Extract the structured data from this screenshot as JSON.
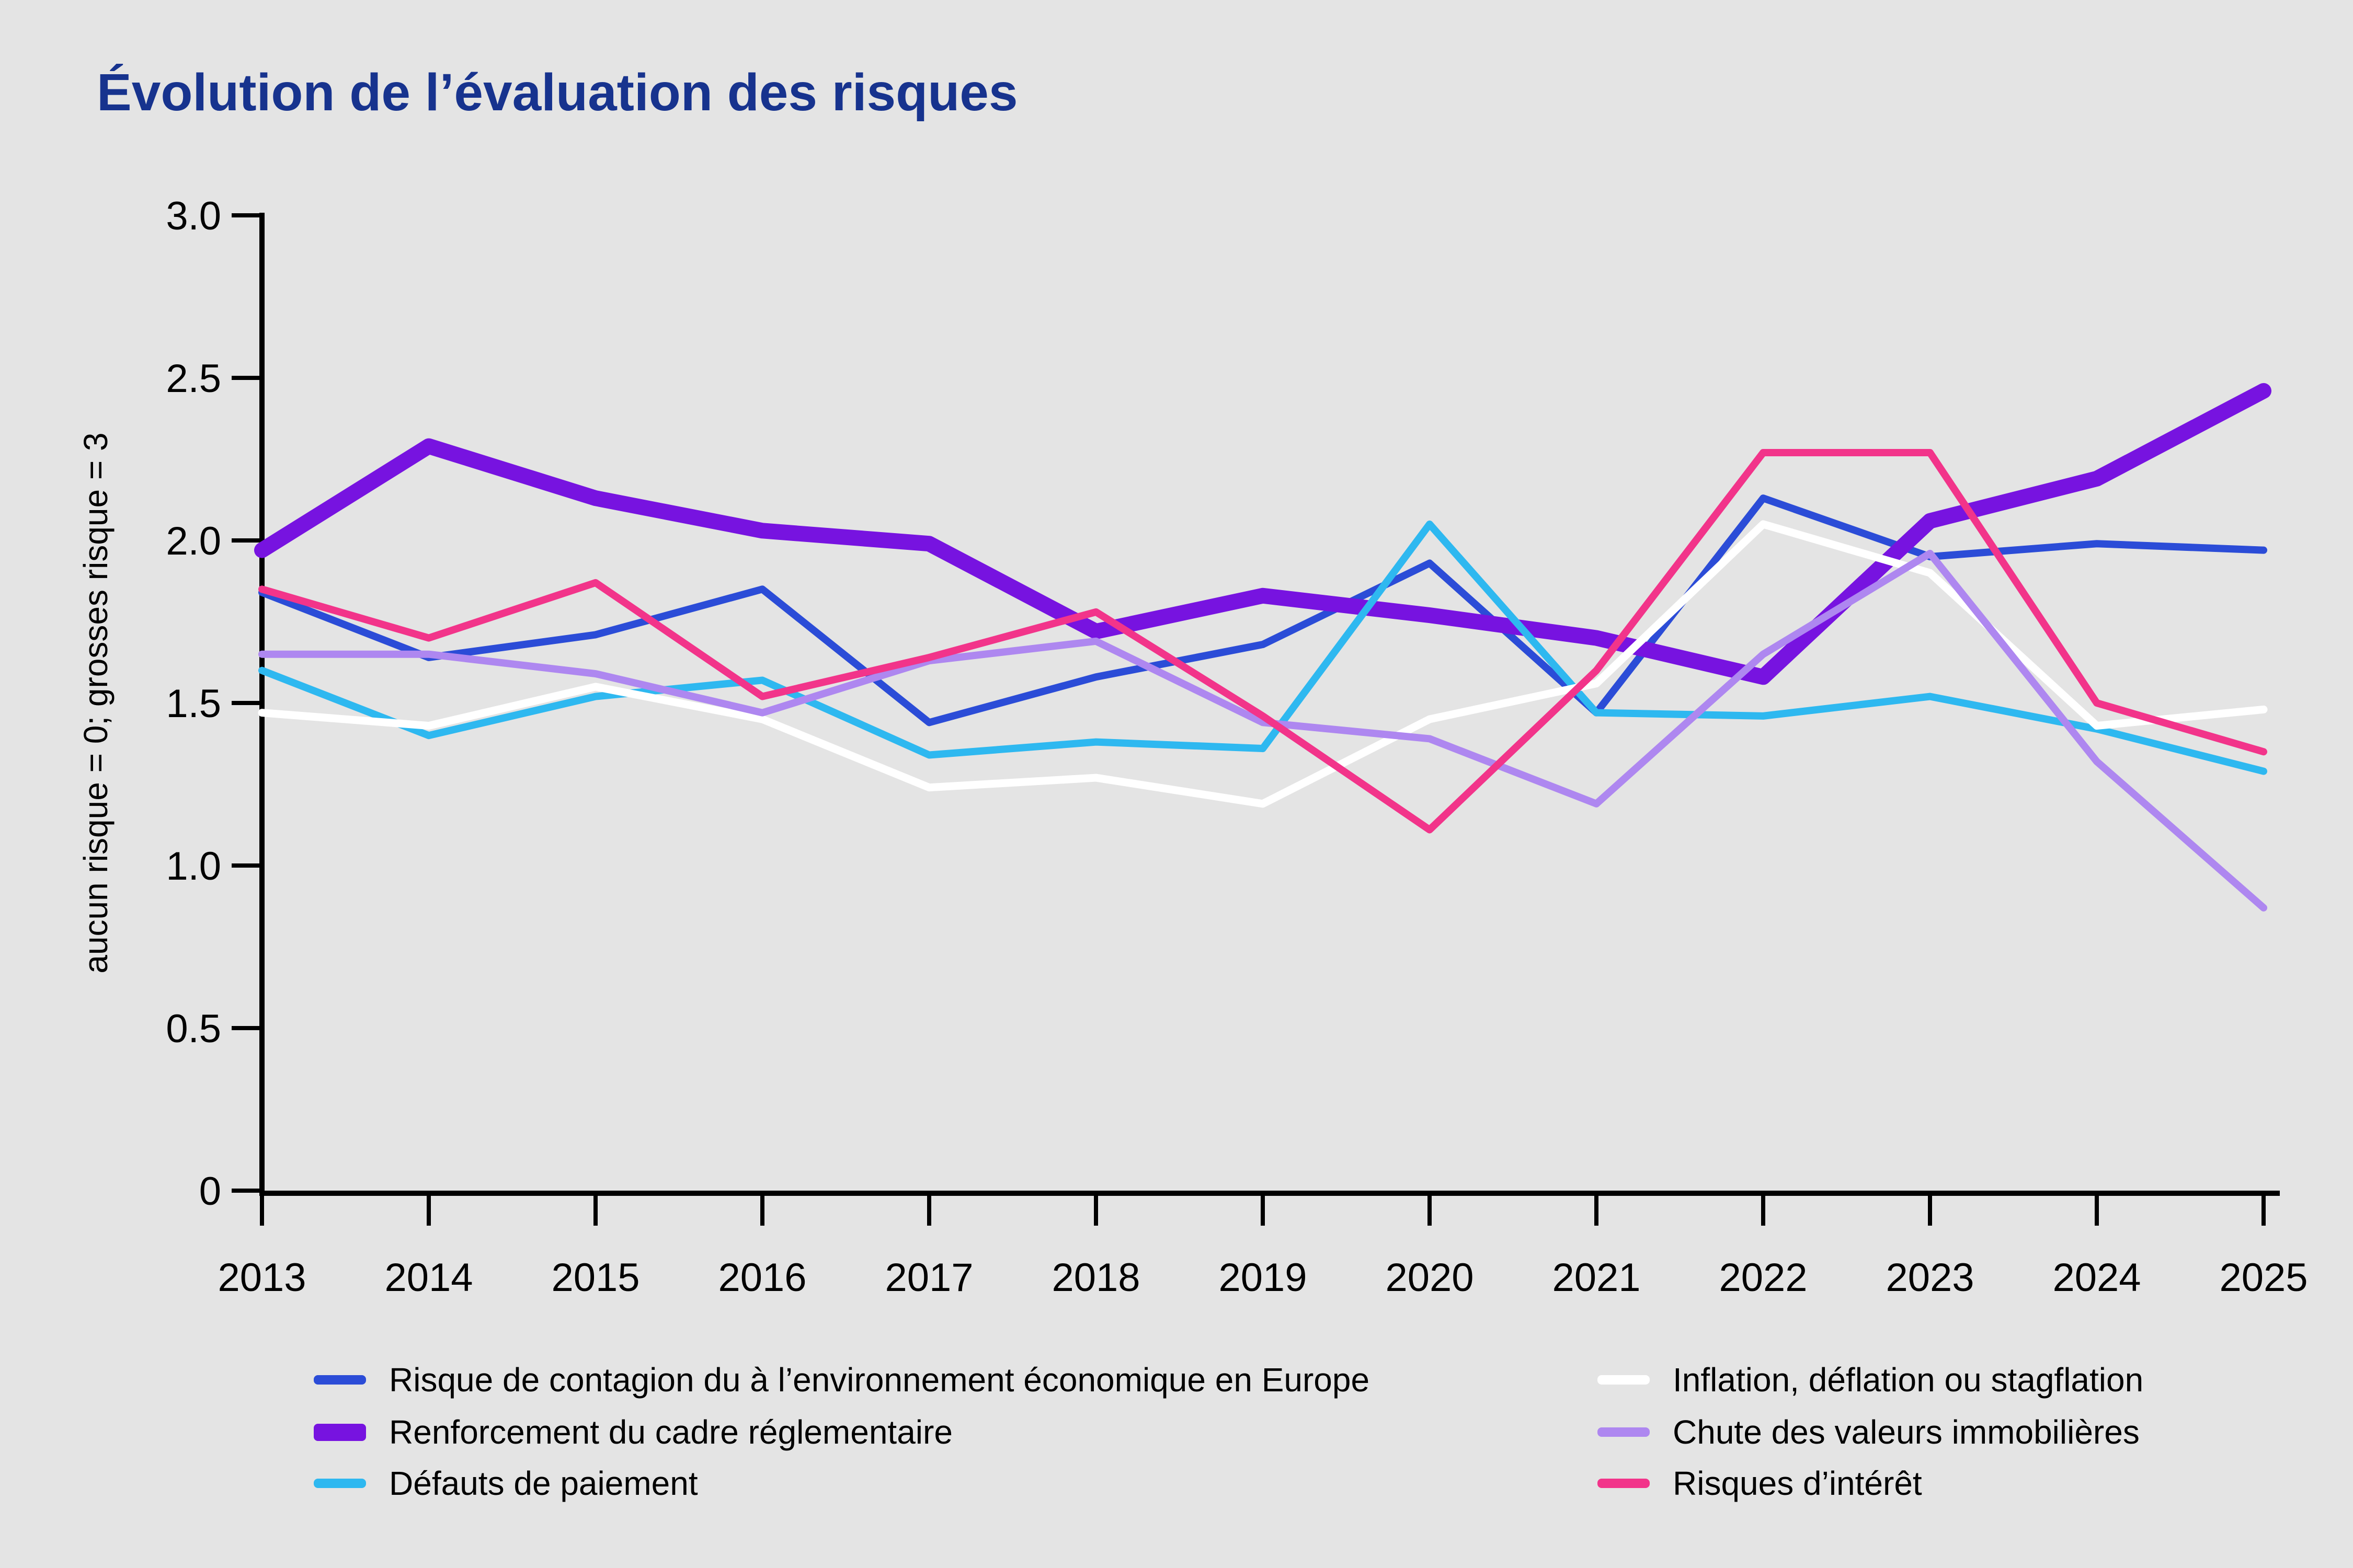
{
  "title": "Évolution de l’évaluation des risques",
  "colors": {
    "background": "#e4e4e4",
    "title": "#17338e",
    "axis": "#000000",
    "tick_text": "#000000",
    "legend_text": "#000000"
  },
  "chart_data": {
    "type": "line",
    "title": "Évolution de l’évaluation des risques",
    "xlabel": "",
    "ylabel": "aucun risque = 0; grosses risque = 3",
    "ylim": [
      0,
      3
    ],
    "grid": false,
    "legend_position": "bottom-two-columns",
    "x": [
      2013,
      2014,
      2015,
      2016,
      2017,
      2018,
      2019,
      2020,
      2021,
      2022,
      2023,
      2024,
      2025
    ],
    "x_tick_labels": [
      "2013",
      "2014",
      "2015",
      "2016",
      "2017",
      "2018",
      "2019",
      "2020",
      "2021",
      "2022",
      "2023",
      "2024",
      "2025"
    ],
    "yticks": [
      0,
      0.5,
      1.0,
      1.5,
      2.0,
      2.5,
      3.0
    ],
    "y_tick_labels": [
      "0",
      "0.5",
      "1.0",
      "1.5",
      "2.0",
      "2.5",
      "3.0"
    ],
    "series": [
      {
        "name": "Risque de contagion du à l’environnement économique en Europe",
        "color": "#2b4cd7",
        "stroke_width": 14,
        "values": [
          1.84,
          1.64,
          1.71,
          1.85,
          1.44,
          1.58,
          1.68,
          1.93,
          1.47,
          2.13,
          1.95,
          1.99,
          1.97
        ]
      },
      {
        "name": "Renforcement du cadre réglementaire",
        "color": "#7713e0",
        "stroke_width": 30,
        "values": [
          1.97,
          2.29,
          2.13,
          2.03,
          1.99,
          1.72,
          1.83,
          1.77,
          1.7,
          1.58,
          2.06,
          2.19,
          2.46
        ]
      },
      {
        "name": "Défauts de paiement",
        "color": "#2eb8f0",
        "stroke_width": 14,
        "values": [
          1.6,
          1.4,
          1.52,
          1.57,
          1.34,
          1.38,
          1.36,
          2.05,
          1.47,
          1.46,
          1.52,
          1.42,
          1.29
        ]
      },
      {
        "name": "Inflation, déflation ou stagflation",
        "color": "#ffffff",
        "stroke_width": 15,
        "values": [
          1.47,
          1.43,
          1.55,
          1.45,
          1.24,
          1.27,
          1.19,
          1.45,
          1.56,
          2.05,
          1.9,
          1.43,
          1.48
        ]
      },
      {
        "name": "Chute des valeurs immobilières",
        "color": "#ae87f0",
        "stroke_width": 14,
        "values": [
          1.65,
          1.65,
          1.59,
          1.47,
          1.63,
          1.69,
          1.44,
          1.39,
          1.19,
          1.65,
          1.96,
          1.32,
          0.87
        ]
      },
      {
        "name": "Risques d’intérêt",
        "color": "#f2348a",
        "stroke_width": 14,
        "values": [
          1.85,
          1.7,
          1.87,
          1.52,
          1.64,
          1.78,
          1.46,
          1.11,
          1.6,
          2.27,
          2.27,
          1.5,
          1.35
        ]
      }
    ]
  },
  "legend": {
    "column1_series": [
      0,
      1,
      2
    ],
    "column2_series": [
      3,
      4,
      5
    ]
  }
}
